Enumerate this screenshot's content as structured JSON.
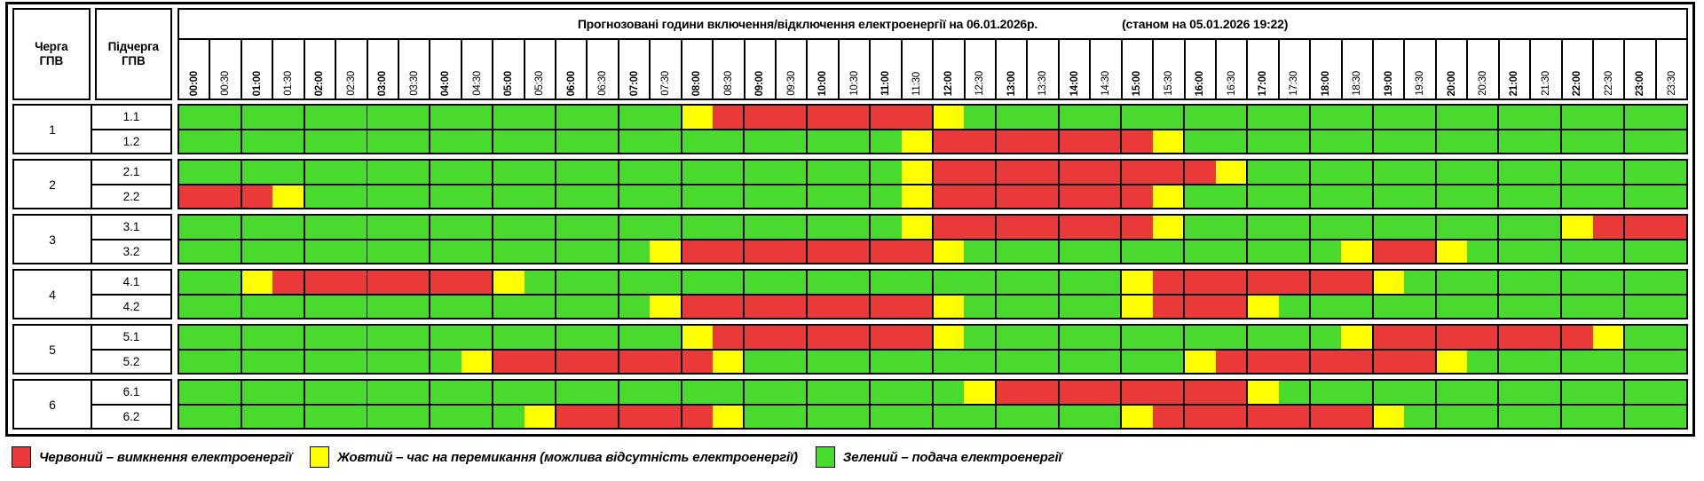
{
  "title": {
    "main": "Прогнозовані години включення/відключення електроенергії на 06.01.2026р.",
    "asof": "(станом на 05.01.2026 19:22)"
  },
  "left_headers": {
    "queue": "Черга\nГПВ",
    "subqueue": "Підчерга\nГПВ"
  },
  "colors": {
    "G": "#48da2d",
    "Y": "#ffff00",
    "R": "#e93938"
  },
  "legend": [
    {
      "color_key": "R",
      "label": "Червоний – вимкнення електроенергії"
    },
    {
      "color_key": "Y",
      "label": "Жовтий – час на перемикання (можлива відсутність електроенергії)"
    },
    {
      "color_key": "G",
      "label": "Зелений – подача електроенергії"
    }
  ],
  "chart_data": {
    "type": "heatmap",
    "cell_minutes": 30,
    "x_categories": [
      "00:00",
      "00:30",
      "01:00",
      "01:30",
      "02:00",
      "02:30",
      "03:00",
      "03:30",
      "04:00",
      "04:30",
      "05:00",
      "05:30",
      "06:00",
      "06:30",
      "07:00",
      "07:30",
      "08:00",
      "08:30",
      "09:00",
      "09:30",
      "10:00",
      "10:30",
      "11:00",
      "11:30",
      "12:00",
      "12:30",
      "13:00",
      "13:30",
      "14:00",
      "14:30",
      "15:00",
      "15:30",
      "16:00",
      "16:30",
      "17:00",
      "17:30",
      "18:00",
      "18:30",
      "19:00",
      "19:30",
      "20:00",
      "20:30",
      "21:00",
      "21:30",
      "22:00",
      "22:30",
      "23:00",
      "23:30"
    ],
    "value_legend": {
      "G": "подача електроенергії",
      "Y": "час на перемикання (можлива відсутність електроенергії)",
      "R": "вимкнення електроенергії"
    },
    "groups": [
      {
        "queue": "1",
        "rows": [
          {
            "label": "1.1",
            "pattern": "GGGGGGGGGGGGGGGGYRRRRRRRYGGGGGGGGGGGGGGGGGGGGGGG"
          },
          {
            "label": "1.2",
            "pattern": "GGGGGGGGGGGGGGGGGGGGGGGYRRRRRRRYGGGGGGGGGGGGGGGG"
          }
        ]
      },
      {
        "queue": "2",
        "rows": [
          {
            "label": "2.1",
            "pattern": "GGGGGGGGGGGGGGGGGGGGGGGYRRRRRRRRRYGGGGGGGGGGGGGG"
          },
          {
            "label": "2.2",
            "pattern": "RRRYGGGGGGGGGGGGGGGGGGGYRRRRRRRYGGGGGGGGGGGGGGGG"
          }
        ]
      },
      {
        "queue": "3",
        "rows": [
          {
            "label": "3.1",
            "pattern": "GGGGGGGGGGGGGGGGGGGGGGGYRRRRRRRYGGGGGGGGGGGGYRRR"
          },
          {
            "label": "3.2",
            "pattern": "GGGGGGGGGGGGGGGYRRRRRRRRYGGGGGGGGGGGGYRRYGGGGGGG"
          }
        ]
      },
      {
        "queue": "4",
        "rows": [
          {
            "label": "4.1",
            "pattern": "GGYRRRRRRRYGGGGGGGGGGGGGGGGGGGYRRRRRRRYGGGGGGGGG"
          },
          {
            "label": "4.2",
            "pattern": "GGGGGGGGGGGGGGGYRRRRRRRRYGGGGGYRRRYGGGGGGGGGGGGG"
          }
        ]
      },
      {
        "queue": "5",
        "rows": [
          {
            "label": "5.1",
            "pattern": "GGGGGGGGGGGGGGGGYRRRRRRRYGGGGGGGGGGGGYRRRRRRRYGG"
          },
          {
            "label": "5.2",
            "pattern": "GGGGGGGGGYRRRRRRRYGGGGGGGGGGGGGGYRRRRRRRYGGGGGGG"
          }
        ]
      },
      {
        "queue": "6",
        "rows": [
          {
            "label": "6.1",
            "pattern": "GGGGGGGGGGGGGGGGGGGGGGGGGYRRRRRRRRYGGGGGGGGGGGGG"
          },
          {
            "label": "6.2",
            "pattern": "GGGGGGGGGGGYRRRRRYGGGGGGGGGGGGYRRRRRRRYGGGGGGGGG"
          }
        ]
      }
    ]
  }
}
